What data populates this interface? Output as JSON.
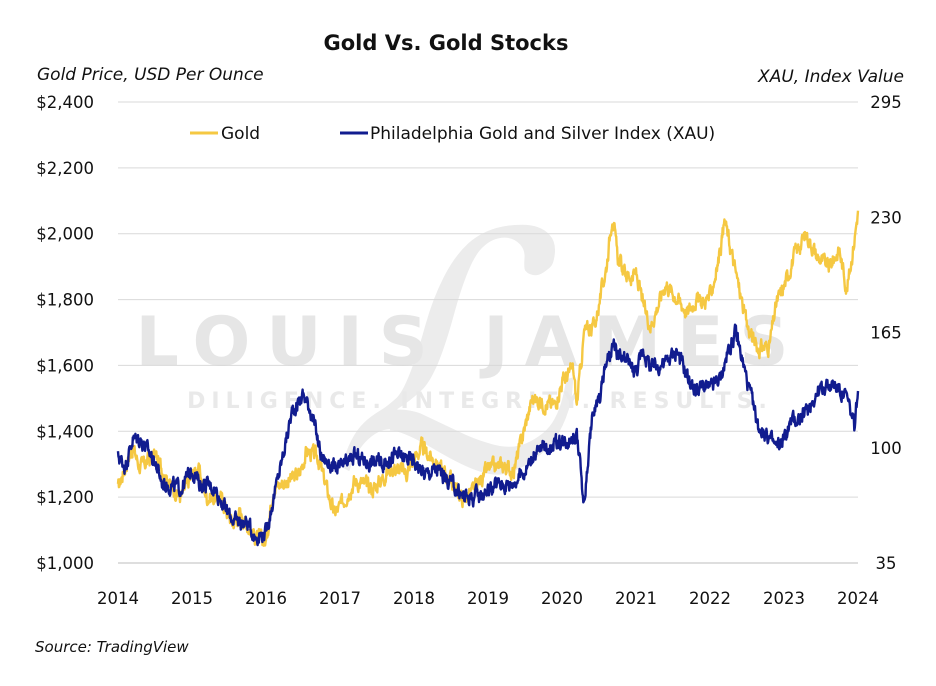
{
  "chart_data": {
    "type": "line",
    "title": "Gold Vs. Gold Stocks",
    "y_left_label": "Gold Price, USD Per Ounce",
    "y_right_label": "XAU, Index Value",
    "source": "Source: TradingView",
    "watermark": {
      "name": "LOUIS JAMES",
      "tagline": "DILIGENCE. INTEGRITY. RESULTS."
    },
    "x_ticks": [
      "2014",
      "2015",
      "2016",
      "2017",
      "2018",
      "2019",
      "2020",
      "2021",
      "2022",
      "2023",
      "2024"
    ],
    "xlim": [
      2014,
      2024
    ],
    "y_left": {
      "min": 1000,
      "max": 2400,
      "ticks": [
        1000,
        1200,
        1400,
        1600,
        1800,
        2000,
        2200,
        2400
      ],
      "tick_labels": [
        "$1,000",
        "$1,200",
        "$1,400",
        "$1,600",
        "$1,800",
        "$2,000",
        "$2,200",
        "$2,400"
      ]
    },
    "y_right": {
      "min": 35,
      "max": 295,
      "ticks": [
        35,
        100,
        165,
        230,
        295
      ],
      "tick_labels": [
        "35",
        "100",
        "165",
        "230",
        "295"
      ]
    },
    "grid": "horizontal",
    "legend_position": "top",
    "series": [
      {
        "name": "Gold",
        "color": "#f5c842",
        "axis": "left",
        "x": [
          2014.0,
          2014.1,
          2014.2,
          2014.3,
          2014.5,
          2014.7,
          2014.85,
          2015.0,
          2015.08,
          2015.2,
          2015.4,
          2015.55,
          2015.65,
          2015.85,
          2016.0,
          2016.1,
          2016.3,
          2016.45,
          2016.55,
          2016.7,
          2016.92,
          2017.0,
          2017.2,
          2017.45,
          2017.6,
          2017.7,
          2017.9,
          2018.0,
          2018.1,
          2018.3,
          2018.5,
          2018.65,
          2018.8,
          2019.0,
          2019.2,
          2019.35,
          2019.5,
          2019.6,
          2019.75,
          2019.9,
          2020.0,
          2020.15,
          2020.2,
          2020.3,
          2020.45,
          2020.6,
          2020.68,
          2020.75,
          2020.85,
          2020.95,
          2021.0,
          2021.1,
          2021.2,
          2021.4,
          2021.6,
          2021.7,
          2021.8,
          2021.9,
          2022.0,
          2022.1,
          2022.2,
          2022.35,
          2022.5,
          2022.65,
          2022.8,
          2022.9,
          2023.0,
          2023.15,
          2023.3,
          2023.45,
          2023.6,
          2023.75,
          2023.85,
          2023.95,
          2024.0
        ],
        "y": [
          1225,
          1295,
          1350,
          1290,
          1330,
          1240,
          1200,
          1265,
          1290,
          1200,
          1195,
          1120,
          1150,
          1080,
          1065,
          1230,
          1250,
          1270,
          1340,
          1320,
          1150,
          1170,
          1250,
          1225,
          1265,
          1290,
          1275,
          1315,
          1350,
          1305,
          1250,
          1195,
          1220,
          1285,
          1295,
          1280,
          1415,
          1500,
          1485,
          1480,
          1550,
          1590,
          1480,
          1700,
          1730,
          1900,
          2060,
          1930,
          1880,
          1870,
          1880,
          1780,
          1720,
          1850,
          1790,
          1760,
          1800,
          1790,
          1810,
          1900,
          2040,
          1880,
          1720,
          1650,
          1660,
          1790,
          1840,
          1940,
          2000,
          1930,
          1900,
          1950,
          1830,
          1980,
          2070
        ]
      },
      {
        "name": "Philadelphia Gold and Silver Index (XAU)",
        "color": "#111c8f",
        "axis": "right",
        "x": [
          2014.0,
          2014.1,
          2014.2,
          2014.3,
          2014.5,
          2014.6,
          2014.85,
          2015.0,
          2015.1,
          2015.3,
          2015.5,
          2015.6,
          2015.75,
          2015.85,
          2016.0,
          2016.2,
          2016.35,
          2016.5,
          2016.6,
          2016.75,
          2016.92,
          2017.0,
          2017.2,
          2017.4,
          2017.6,
          2017.75,
          2017.9,
          2018.0,
          2018.15,
          2018.3,
          2018.5,
          2018.65,
          2018.8,
          2019.0,
          2019.15,
          2019.3,
          2019.5,
          2019.6,
          2019.75,
          2019.9,
          2020.0,
          2020.2,
          2020.3,
          2020.4,
          2020.5,
          2020.6,
          2020.7,
          2020.8,
          2020.9,
          2021.0,
          2021.1,
          2021.2,
          2021.4,
          2021.55,
          2021.7,
          2021.8,
          2021.9,
          2022.0,
          2022.15,
          2022.25,
          2022.35,
          2022.5,
          2022.65,
          2022.75,
          2022.9,
          2023.0,
          2023.1,
          2023.25,
          2023.4,
          2023.55,
          2023.7,
          2023.85,
          2023.95,
          2024.0
        ],
        "y": [
          95,
          90,
          105,
          105,
          92,
          80,
          77,
          88,
          80,
          78,
          62,
          58,
          58,
          50,
          52,
          90,
          120,
          130,
          122,
          95,
          88,
          88,
          95,
          92,
          92,
          96,
          94,
          93,
          85,
          88,
          80,
          73,
          72,
          76,
          80,
          79,
          87,
          95,
          100,
          102,
          103,
          108,
          68,
          115,
          128,
          148,
          156,
          150,
          148,
          143,
          155,
          145,
          148,
          155,
          140,
          132,
          135,
          133,
          140,
          155,
          165,
          138,
          112,
          108,
          100,
          105,
          115,
          117,
          128,
          135,
          135,
          128,
          112,
          132
        ]
      }
    ]
  }
}
